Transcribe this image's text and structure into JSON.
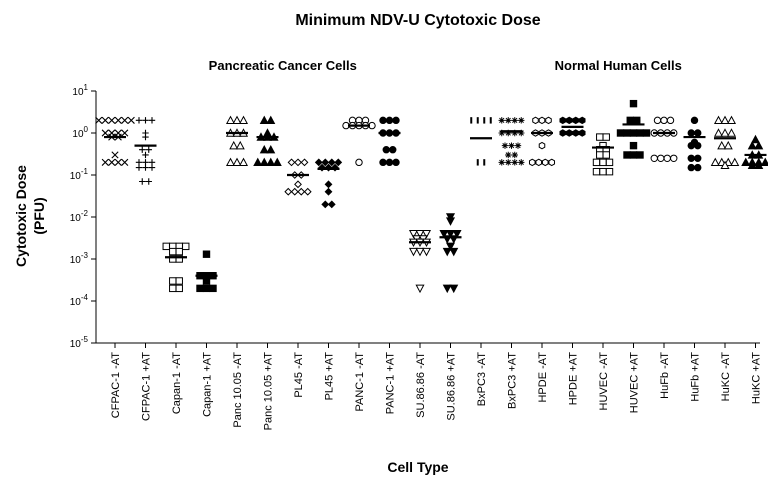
{
  "chart_data": {
    "type": "scatter",
    "title": "Minimum NDV-U Cytotoxic Dose",
    "xlabel": "Cell Type",
    "ylabel": [
      "Cytotoxic Dose",
      "(PFU)"
    ],
    "yscale": "log",
    "ylim": [
      1e-05,
      10
    ],
    "yticks": [
      {
        "base": "10",
        "exp": "1",
        "value": 10
      },
      {
        "base": "10",
        "exp": "0",
        "value": 1
      },
      {
        "base": "10",
        "exp": "-1",
        "value": 0.1
      },
      {
        "base": "10",
        "exp": "-2",
        "value": 0.01
      },
      {
        "base": "10",
        "exp": "-3",
        "value": 0.001
      },
      {
        "base": "10",
        "exp": "-4",
        "value": 0.0001
      },
      {
        "base": "10",
        "exp": "-5",
        "value": 1e-05
      }
    ],
    "groups": [
      {
        "label": "Pancreatic Cancer Cells",
        "first": 0,
        "last": 11
      },
      {
        "label": "Normal Human Cells",
        "first": 12,
        "last": 21
      }
    ],
    "categories": [
      "CFPAC-1 -AT",
      "CFPAC-1 +AT",
      "Capan-1 -AT",
      "Capan-1 +AT",
      "Panc 10.05 -AT",
      "Panc 10.05 +AT",
      "PL45 -AT",
      "PL45 +AT",
      "PANC-1 -AT",
      "PANC-1 +AT",
      "SU.86.86 -AT",
      "SU.86.86 +AT",
      "BxPC3 -AT",
      "BxPC3 +AT",
      "HPDE -AT",
      "HPDE +AT",
      "HUVEC -AT",
      "HUVEC +AT",
      "HuFb -AT",
      "HuFb +AT",
      "HuKC -AT",
      "HuKC +AT"
    ],
    "series": [
      {
        "name": "CFPAC-1 -AT",
        "marker": "x",
        "values": [
          2,
          2,
          2,
          2,
          2,
          2,
          1,
          1,
          1,
          1,
          0.8,
          0.8,
          0.3,
          0.2,
          0.2,
          0.2,
          0.2
        ],
        "median": 0.8
      },
      {
        "name": "CFPAC-1 +AT",
        "marker": "plus",
        "values": [
          2,
          2,
          2,
          1,
          0.8,
          0.4,
          0.4,
          0.3,
          0.2,
          0.2,
          0.2,
          0.15,
          0.15,
          0.15,
          0.07,
          0.07
        ],
        "median": 0.5
      },
      {
        "name": "Capan-1 -AT",
        "marker": "square-open",
        "values": [
          0.002,
          0.002,
          0.002,
          0.002,
          0.0015,
          0.0015,
          0.001,
          0.001,
          0.0003,
          0.0003,
          0.0002,
          0.0002
        ],
        "median": 0.0011
      },
      {
        "name": "Capan-1 +AT",
        "marker": "square-filled",
        "values": [
          0.0013,
          0.0004,
          0.0004,
          0.0004,
          0.0003,
          0.0002,
          0.0002,
          0.0002
        ],
        "median": 0.0004
      },
      {
        "name": "Panc 10.05 -AT",
        "marker": "triangle-up-open",
        "values": [
          2,
          2,
          2,
          1,
          1,
          1,
          0.5,
          0.5,
          0.2,
          0.2,
          0.2
        ],
        "median": 1
      },
      {
        "name": "Panc 10.05 +AT",
        "marker": "triangle-up-filled",
        "values": [
          2,
          2,
          1,
          0.8,
          0.8,
          0.8,
          0.4,
          0.4,
          0.2,
          0.2,
          0.2,
          0.2
        ],
        "median": 0.8
      },
      {
        "name": "PL45 -AT",
        "marker": "diamond-open",
        "values": [
          0.2,
          0.2,
          0.2,
          0.1,
          0.1,
          0.06,
          0.04,
          0.04,
          0.04,
          0.04
        ],
        "median": 0.1
      },
      {
        "name": "PL45 +AT",
        "marker": "diamond-filled",
        "values": [
          0.2,
          0.2,
          0.2,
          0.2,
          0.15,
          0.15,
          0.15,
          0.06,
          0.04,
          0.02,
          0.02
        ],
        "median": 0.14
      },
      {
        "name": "PANC-1 -AT",
        "marker": "circle-open",
        "values": [
          2,
          2,
          2,
          1.5,
          1.5,
          1.5,
          1.5,
          1.5,
          0.2
        ],
        "median": 1.5
      },
      {
        "name": "PANC-1 +AT",
        "marker": "circle-filled",
        "values": [
          2,
          2,
          2,
          1,
          1,
          1,
          0.4,
          0.4,
          0.2,
          0.2,
          0.2
        ],
        "median": 1
      },
      {
        "name": "SU.86.86 -AT",
        "marker": "triangle-down-open",
        "values": [
          0.004,
          0.004,
          0.004,
          0.003,
          0.003,
          0.0025,
          0.0025,
          0.0025,
          0.0015,
          0.0015,
          0.0015,
          0.0002
        ],
        "median": 0.0025
      },
      {
        "name": "SU.86.86 +AT",
        "marker": "triangle-down-filled",
        "values": [
          0.01,
          0.008,
          0.004,
          0.004,
          0.004,
          0.003,
          0.003,
          0.002,
          0.0015,
          0.0015,
          0.0002,
          0.0002
        ],
        "median": 0.0033
      },
      {
        "name": "BxPC3 -AT",
        "marker": "bar",
        "values": [
          2,
          2,
          2,
          2,
          0.2,
          0.2
        ],
        "median": 0.75
      },
      {
        "name": "BxPC3 +AT",
        "marker": "asterisk",
        "values": [
          2,
          2,
          2,
          2,
          1,
          1,
          1,
          1,
          0.5,
          0.5,
          0.5,
          0.3,
          0.3,
          0.2,
          0.2,
          0.2,
          0.2
        ],
        "median": 1.1
      },
      {
        "name": "HPDE -AT",
        "marker": "hexagon-open",
        "values": [
          2,
          2,
          2,
          1,
          1,
          1,
          0.5,
          0.2,
          0.2,
          0.2,
          0.2
        ],
        "median": 1
      },
      {
        "name": "HPDE +AT",
        "marker": "hexagon-filled",
        "values": [
          2,
          2,
          2,
          2,
          1,
          1,
          1,
          1
        ],
        "median": 1.4
      },
      {
        "name": "HUVEC -AT",
        "marker": "square-open",
        "values": [
          0.8,
          0.8,
          0.5,
          0.4,
          0.4,
          0.3,
          0.3,
          0.2,
          0.2,
          0.2,
          0.12,
          0.12,
          0.12
        ],
        "median": 0.45
      },
      {
        "name": "HUVEC +AT",
        "marker": "square-filled",
        "values": [
          5,
          2,
          2,
          1,
          1,
          1,
          1,
          1,
          0.5,
          0.3,
          0.3,
          0.3
        ],
        "median": 1.6
      },
      {
        "name": "HuFb -AT",
        "marker": "circle-open",
        "values": [
          2,
          2,
          2,
          1,
          1,
          1,
          1,
          0.25,
          0.25,
          0.25,
          0.25
        ],
        "median": 1
      },
      {
        "name": "HuFb +AT",
        "marker": "circle-filled",
        "values": [
          2,
          1,
          1,
          0.6,
          0.5,
          0.5,
          0.25,
          0.25,
          0.15,
          0.15
        ],
        "median": 0.8
      },
      {
        "name": "HuKC -AT",
        "marker": "triangle-up-open",
        "values": [
          2,
          2,
          2,
          1,
          1,
          1,
          0.5,
          0.5,
          0.2,
          0.2,
          0.2,
          0.2,
          0.17
        ],
        "median": 0.75
      },
      {
        "name": "HuKC +AT",
        "marker": "triangle-up-filled",
        "values": [
          0.7,
          0.5,
          0.5,
          0.3,
          0.3,
          0.2,
          0.2,
          0.2,
          0.2,
          0.17,
          0.17
        ],
        "median": 0.3
      }
    ]
  }
}
